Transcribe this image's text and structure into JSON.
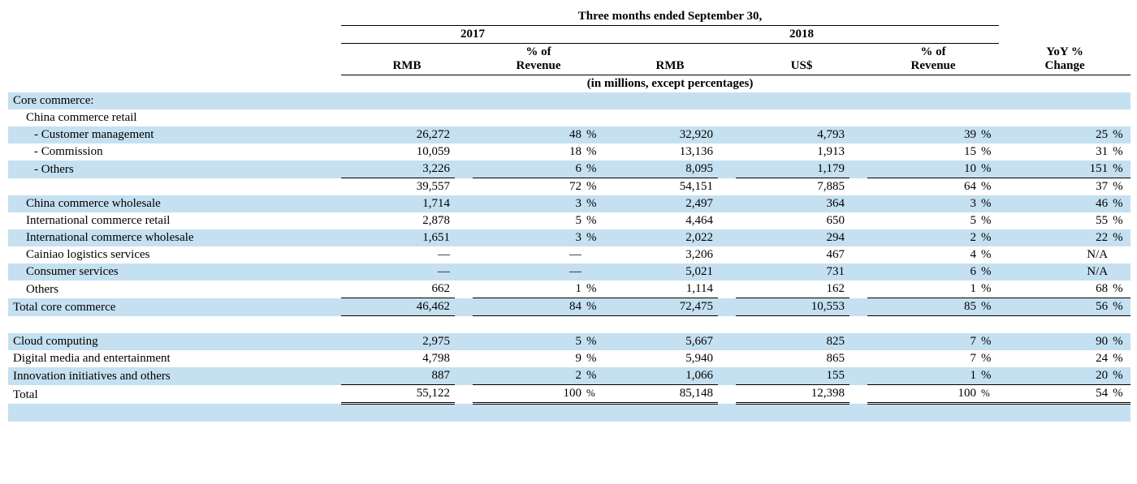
{
  "table": {
    "overall_header": "Three months ended September 30,",
    "year_2017": "2017",
    "year_2018": "2018",
    "col_rmb": "RMB",
    "col_pct_rev": "% of\nRevenue",
    "col_usd": "US$",
    "col_yoy": "YoY %\nChange",
    "units_note": "(in millions, except percentages)",
    "labels": {
      "core_commerce": "Core commerce:",
      "china_retail": "China commerce retail",
      "cust_mgmt": "- Customer management",
      "commission": "- Commission",
      "others_retail": "- Others",
      "china_wholesale": "China commerce wholesale",
      "intl_retail": "International commerce retail",
      "intl_wholesale": "International commerce wholesale",
      "cainiao": "Cainiao logistics services",
      "consumer_svc": "Consumer services",
      "others_core": "Others",
      "total_core": "Total core commerce",
      "cloud": "Cloud computing",
      "digital_media": "Digital media and entertainment",
      "innovation": "Innovation initiatives and others",
      "total": "Total"
    },
    "rows": {
      "cust_mgmt": {
        "rmb17": "26,272",
        "p17": "48",
        "rmb18": "32,920",
        "usd18": "4,793",
        "p18": "39",
        "yoy": "25"
      },
      "commission": {
        "rmb17": "10,059",
        "p17": "18",
        "rmb18": "13,136",
        "usd18": "1,913",
        "p18": "15",
        "yoy": "31"
      },
      "others_retail": {
        "rmb17": "3,226",
        "p17": "6",
        "rmb18": "8,095",
        "usd18": "1,179",
        "p18": "10",
        "yoy": "151"
      },
      "retail_sub": {
        "rmb17": "39,557",
        "p17": "72",
        "rmb18": "54,151",
        "usd18": "7,885",
        "p18": "64",
        "yoy": "37"
      },
      "china_wholesale": {
        "rmb17": "1,714",
        "p17": "3",
        "rmb18": "2,497",
        "usd18": "364",
        "p18": "3",
        "yoy": "46"
      },
      "intl_retail": {
        "rmb17": "2,878",
        "p17": "5",
        "rmb18": "4,464",
        "usd18": "650",
        "p18": "5",
        "yoy": "55"
      },
      "intl_wholesale": {
        "rmb17": "1,651",
        "p17": "3",
        "rmb18": "2,022",
        "usd18": "294",
        "p18": "2",
        "yoy": "22"
      },
      "cainiao": {
        "rmb17": "—",
        "p17": "—",
        "rmb18": "3,206",
        "usd18": "467",
        "p18": "4",
        "yoy": "N/A"
      },
      "consumer_svc": {
        "rmb17": "—",
        "p17": "—",
        "rmb18": "5,021",
        "usd18": "731",
        "p18": "6",
        "yoy": "N/A"
      },
      "others_core": {
        "rmb17": "662",
        "p17": "1",
        "rmb18": "1,114",
        "usd18": "162",
        "p18": "1",
        "yoy": "68"
      },
      "total_core": {
        "rmb17": "46,462",
        "p17": "84",
        "rmb18": "72,475",
        "usd18": "10,553",
        "p18": "85",
        "yoy": "56"
      },
      "cloud": {
        "rmb17": "2,975",
        "p17": "5",
        "rmb18": "5,667",
        "usd18": "825",
        "p18": "7",
        "yoy": "90"
      },
      "digital_media": {
        "rmb17": "4,798",
        "p17": "9",
        "rmb18": "5,940",
        "usd18": "865",
        "p18": "7",
        "yoy": "24"
      },
      "innovation": {
        "rmb17": "887",
        "p17": "2",
        "rmb18": "1,066",
        "usd18": "155",
        "p18": "1",
        "yoy": "20"
      },
      "total": {
        "rmb17": "55,122",
        "p17": "100",
        "rmb18": "85,148",
        "usd18": "12,398",
        "p18": "100",
        "yoy": "54"
      }
    },
    "styling": {
      "shade_color": "#c5e0f0",
      "font_family": "Times New Roman",
      "font_size_pt": 11,
      "header_bold": true
    }
  }
}
